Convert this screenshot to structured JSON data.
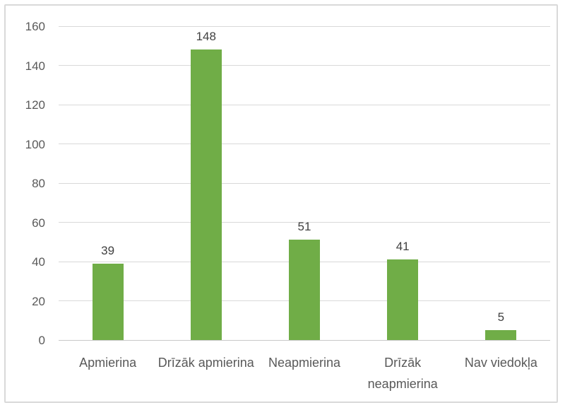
{
  "chart_data": {
    "type": "bar",
    "title": "",
    "xlabel": "",
    "ylabel": "",
    "categories": [
      "Apmierina",
      "Drīzāk apmierina",
      "Neapmierina",
      "Drīzāk neapmierina",
      "Nav viedokļa"
    ],
    "values": [
      39,
      148,
      51,
      41,
      5
    ],
    "data_labels": [
      "39",
      "148",
      "51",
      "41",
      "5"
    ],
    "ylim": [
      0,
      160
    ],
    "yticks": [
      0,
      20,
      40,
      60,
      80,
      100,
      120,
      140,
      160
    ],
    "grid": true,
    "legend_position": "none",
    "colors": {
      "bar": "#70AD47",
      "gridline": "#D9D9D9",
      "axis_line": "#C9C9C9",
      "tick_label": "#595959",
      "data_label": "#404040",
      "frame_border": "#D9D9D9",
      "background": "#FFFFFF"
    }
  }
}
